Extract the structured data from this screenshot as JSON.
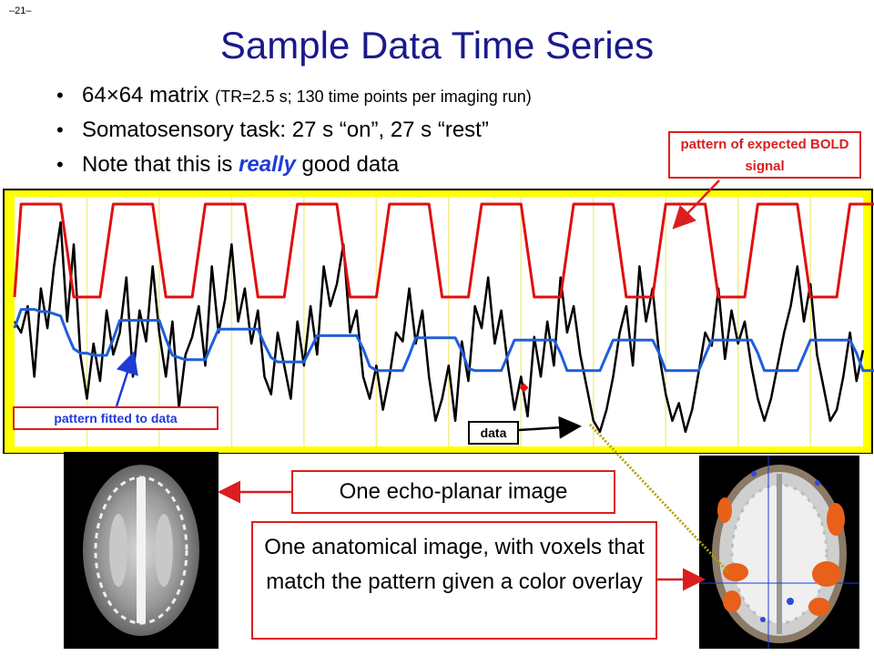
{
  "slide": {
    "page_number": "–21–",
    "title": "Sample Data Time Series",
    "bullets": [
      {
        "main": "64×64 matrix",
        "note": "(TR=2.5 s; 130 time points per imaging run)"
      },
      {
        "text": "Somatosensory task: 27 s “on”, 27 s “rest”"
      },
      {
        "pre": "Note that this is",
        "em": "really",
        "post": "good data"
      }
    ]
  },
  "labels": {
    "expected": "pattern of expected BOLD signal",
    "fitted": "pattern fitted to data",
    "data": "data",
    "echo": "One echo-planar image",
    "anatomical": "One anatomical image, with voxels that match the pattern given a color overlay"
  },
  "colors": {
    "frame_yellow": "#ffff00",
    "expected_red": "#e01010",
    "fitted_blue": "#1f5fd9",
    "data_black": "#000000",
    "callout_red": "#dc1e1e",
    "title_blue": "#1a1a8c"
  },
  "chart_data": {
    "type": "line",
    "n_points": 130,
    "block_length_points": 11,
    "series": [
      {
        "name": "pattern of expected BOLD signal",
        "color": "#e01010",
        "values": [
          0,
          1,
          1,
          1,
          1,
          1,
          1,
          1,
          0.5,
          0,
          0,
          0,
          0,
          0,
          0.5,
          1,
          1,
          1,
          1,
          1,
          1,
          1,
          0.5,
          0,
          0,
          0,
          0,
          0,
          0.5,
          1,
          1,
          1,
          1,
          1,
          1,
          1,
          0.5,
          0,
          0,
          0,
          0,
          0,
          0.5,
          1,
          1,
          1,
          1,
          1,
          1,
          1,
          0.5,
          0,
          0,
          0,
          0,
          0,
          0.5,
          1,
          1,
          1,
          1,
          1,
          1,
          1,
          0.5,
          0,
          0,
          0,
          0,
          0,
          0.5,
          1,
          1,
          1,
          1,
          1,
          1,
          1,
          0.5,
          0,
          0,
          0,
          0,
          0,
          0.5,
          1,
          1,
          1,
          1,
          1,
          1,
          1,
          0.5,
          0,
          0,
          0,
          0,
          0,
          0.5,
          1,
          1,
          1,
          1,
          1,
          1,
          1,
          0.5,
          0,
          0,
          0,
          0,
          0,
          0.5,
          1,
          1,
          1,
          1,
          1,
          1,
          1,
          0.5,
          0,
          0,
          0,
          0,
          0,
          0.5,
          1,
          1,
          1,
          1,
          1,
          1,
          1,
          0.5,
          0,
          0,
          0,
          0,
          0,
          0.5
        ]
      },
      {
        "name": "pattern fitted to data",
        "color": "#1f5fd9",
        "values": [
          0.55,
          0.72,
          0.72,
          0.72,
          0.7,
          0.7,
          0.68,
          0.66,
          0.5,
          0.36,
          0.32,
          0.32,
          0.3,
          0.3,
          0.3,
          0.45,
          0.62,
          0.62,
          0.62,
          0.62,
          0.62,
          0.62,
          0.62,
          0.45,
          0.3,
          0.28,
          0.26,
          0.26,
          0.26,
          0.26,
          0.4,
          0.54,
          0.54,
          0.54,
          0.54,
          0.54,
          0.54,
          0.54,
          0.4,
          0.28,
          0.24,
          0.24,
          0.24,
          0.24,
          0.24,
          0.36,
          0.48,
          0.48,
          0.48,
          0.48,
          0.48,
          0.48,
          0.48,
          0.36,
          0.2,
          0.16,
          0.16,
          0.16,
          0.16,
          0.16,
          0.3,
          0.46,
          0.46,
          0.46,
          0.46,
          0.46,
          0.46,
          0.46,
          0.34,
          0.18,
          0.16,
          0.16,
          0.16,
          0.16,
          0.16,
          0.3,
          0.44,
          0.44,
          0.44,
          0.44,
          0.44,
          0.44,
          0.44,
          0.32,
          0.16,
          0.16,
          0.16,
          0.16,
          0.16,
          0.16,
          0.3,
          0.44,
          0.44,
          0.44,
          0.44,
          0.44,
          0.44,
          0.44,
          0.32,
          0.16,
          0.16,
          0.16,
          0.16,
          0.16,
          0.16,
          0.3,
          0.44,
          0.44,
          0.44,
          0.44,
          0.44,
          0.44,
          0.44,
          0.32,
          0.16,
          0.16,
          0.16,
          0.16,
          0.16,
          0.16,
          0.3,
          0.44,
          0.44,
          0.44,
          0.44,
          0.44,
          0.44,
          0.44,
          0.32,
          0.16,
          0.16,
          0.16
        ]
      },
      {
        "name": "data",
        "color": "#000000",
        "values": [
          0.55,
          0.5,
          0.62,
          0.3,
          0.7,
          0.52,
          0.8,
          1.0,
          0.55,
          0.9,
          0.4,
          0.2,
          0.45,
          0.28,
          0.6,
          0.4,
          0.5,
          0.75,
          0.3,
          0.6,
          0.46,
          0.8,
          0.5,
          0.3,
          0.55,
          0.16,
          0.4,
          0.48,
          0.62,
          0.35,
          0.8,
          0.5,
          0.65,
          0.9,
          0.55,
          0.7,
          0.45,
          0.6,
          0.3,
          0.22,
          0.5,
          0.35,
          0.2,
          0.55,
          0.35,
          0.62,
          0.4,
          0.8,
          0.62,
          0.72,
          0.9,
          0.5,
          0.6,
          0.3,
          0.2,
          0.35,
          0.15,
          0.3,
          0.5,
          0.46,
          0.7,
          0.45,
          0.6,
          0.3,
          0.1,
          0.2,
          0.35,
          0.1,
          0.46,
          0.28,
          0.62,
          0.52,
          0.75,
          0.45,
          0.6,
          0.35,
          0.15,
          0.3,
          0.12,
          0.48,
          0.3,
          0.55,
          0.35,
          0.75,
          0.5,
          0.62,
          0.4,
          0.25,
          0.1,
          0.05,
          0.15,
          0.3,
          0.5,
          0.62,
          0.35,
          0.8,
          0.55,
          0.7,
          0.4,
          0.22,
          0.1,
          0.18,
          0.05,
          0.15,
          0.32,
          0.5,
          0.44,
          0.7,
          0.38,
          0.6,
          0.45,
          0.55,
          0.35,
          0.2,
          0.1,
          0.2,
          0.35,
          0.5,
          0.62,
          0.8,
          0.55,
          0.72,
          0.4,
          0.25,
          0.1,
          0.15,
          0.3,
          0.5,
          0.28,
          0.42
        ]
      }
    ]
  }
}
